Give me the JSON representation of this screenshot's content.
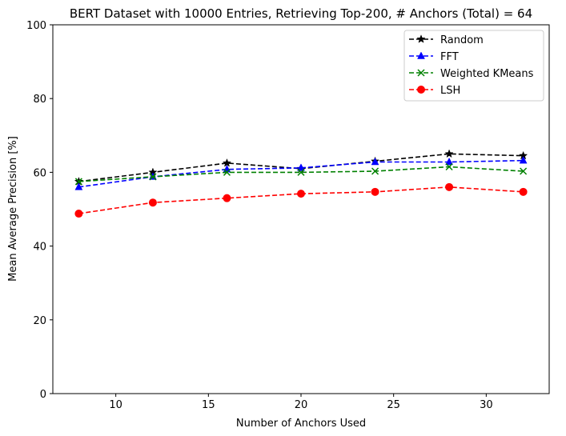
{
  "chart_data": {
    "type": "line",
    "title": "BERT Dataset with 10000 Entries, Retrieving Top-200, # Anchors (Total) = 64",
    "xlabel": "Number of Anchors Used",
    "ylabel": "Mean Average Precision [%]",
    "xlim": [
      6.6,
      33.4
    ],
    "ylim": [
      0,
      100
    ],
    "xticks": [
      10,
      15,
      20,
      25,
      30
    ],
    "yticks": [
      0,
      20,
      40,
      60,
      80,
      100
    ],
    "grid": false,
    "legend_position": "top-right",
    "x": [
      8,
      12,
      16,
      20,
      24,
      28,
      32
    ],
    "series": [
      {
        "name": "Random",
        "color": "#000000",
        "marker": "star",
        "values": [
          57.5,
          60.0,
          62.5,
          61.0,
          63.0,
          65.0,
          64.5
        ]
      },
      {
        "name": "FFT",
        "color": "#0000ff",
        "marker": "triangle",
        "values": [
          56.0,
          58.8,
          60.8,
          61.2,
          62.8,
          62.8,
          63.2
        ]
      },
      {
        "name": "Weighted KMeans",
        "color": "#008000",
        "marker": "x",
        "values": [
          57.5,
          58.8,
          60.0,
          60.0,
          60.3,
          61.5,
          60.3
        ]
      },
      {
        "name": "LSH",
        "color": "#ff0000",
        "marker": "circle",
        "values": [
          48.8,
          51.8,
          53.0,
          54.2,
          54.7,
          56.0,
          54.7
        ]
      }
    ]
  }
}
